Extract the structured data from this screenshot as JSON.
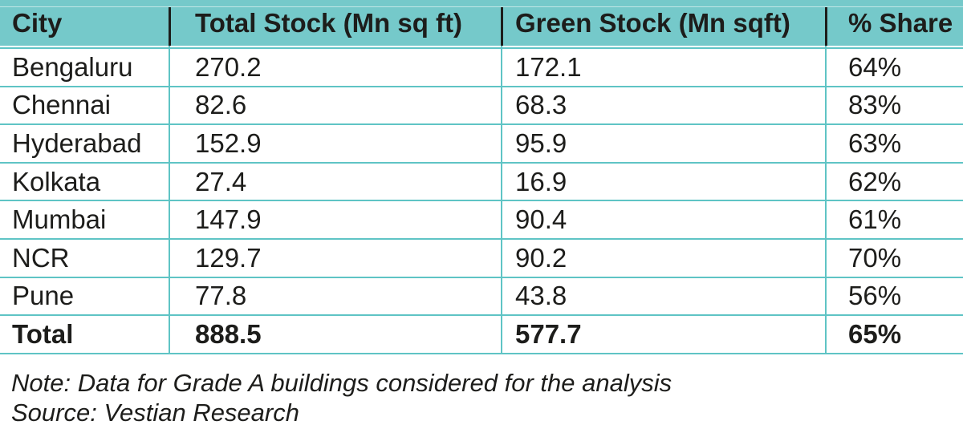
{
  "table": {
    "columns": [
      {
        "label": "City"
      },
      {
        "label": "Total Stock (Mn sq ft)"
      },
      {
        "label": "Green Stock (Mn sqft)"
      },
      {
        "label": "% Share"
      }
    ],
    "rows": [
      {
        "city": "Bengaluru",
        "total_stock": "270.2",
        "green_stock": "172.1",
        "share": "64%"
      },
      {
        "city": "Chennai",
        "total_stock": "82.6",
        "green_stock": "68.3",
        "share": "83%"
      },
      {
        "city": "Hyderabad",
        "total_stock": "152.9",
        "green_stock": "95.9",
        "share": "63%"
      },
      {
        "city": "Kolkata",
        "total_stock": "27.4",
        "green_stock": "16.9",
        "share": "62%"
      },
      {
        "city": "Mumbai",
        "total_stock": "147.9",
        "green_stock": "90.4",
        "share": "61%"
      },
      {
        "city": "NCR",
        "total_stock": "129.7",
        "green_stock": "90.2",
        "share": "70%"
      },
      {
        "city": "Pune",
        "total_stock": "77.8",
        "green_stock": "43.8",
        "share": "56%"
      }
    ],
    "total_row": {
      "city": "Total",
      "total_stock": "888.5",
      "green_stock": "577.7",
      "share": "65%"
    }
  },
  "footnotes": {
    "note": "Note: Data for Grade A buildings considered for the analysis",
    "source": "Source: Vestian Research"
  },
  "colors": {
    "header_bg": "#75C9CA",
    "grid_line": "#5FC4C5",
    "text": "#1D1D1B"
  },
  "chart_data": {
    "type": "table",
    "title": "",
    "columns": [
      "City",
      "Total Stock (Mn sq ft)",
      "Green Stock (Mn sqft)",
      "% Share"
    ],
    "rows": [
      [
        "Bengaluru",
        270.2,
        172.1,
        "64%"
      ],
      [
        "Chennai",
        82.6,
        68.3,
        "83%"
      ],
      [
        "Hyderabad",
        152.9,
        95.9,
        "63%"
      ],
      [
        "Kolkata",
        27.4,
        16.9,
        "62%"
      ],
      [
        "Mumbai",
        147.9,
        90.4,
        "61%"
      ],
      [
        "NCR",
        129.7,
        90.2,
        "70%"
      ],
      [
        "Pune",
        77.8,
        43.8,
        "56%"
      ],
      [
        "Total",
        888.5,
        577.7,
        "65%"
      ]
    ],
    "notes": [
      "Note: Data for Grade A buildings considered for the analysis",
      "Source: Vestian Research"
    ]
  }
}
